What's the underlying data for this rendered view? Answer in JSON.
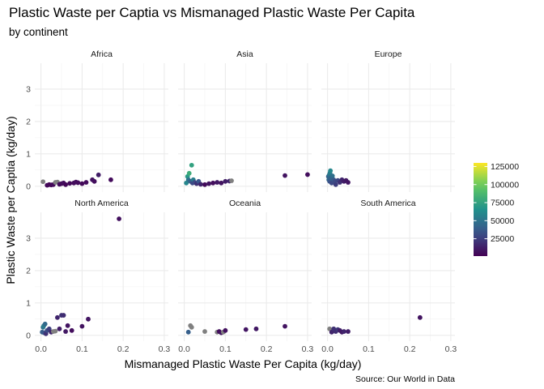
{
  "chart_data": {
    "type": "scatter",
    "title": "Plastic Waste per Captia vs Mismanaged Plastic Waste Per Capita",
    "subtitle": "by continent",
    "xlabel": "Mismanaged Plastic Waste Per Capita (kg/day)",
    "ylabel": "Plastic Waste per Captia (kg/day)",
    "caption": "Source: Our World in Data",
    "xlim": [
      -0.015,
      0.31
    ],
    "ylim": [
      -0.18,
      3.8
    ],
    "x_ticks": [
      0.0,
      0.1,
      0.2,
      0.3
    ],
    "x_tick_labels": [
      "0.0",
      "0.1",
      "0.2",
      "0.3"
    ],
    "y_ticks": [
      0,
      1,
      2,
      3
    ],
    "y_tick_labels": [
      "0",
      "1",
      "2",
      "3"
    ],
    "grid": true,
    "legend": {
      "placement": "right",
      "type": "colorbar",
      "ticks": [
        25000,
        50000,
        75000,
        100000,
        125000
      ],
      "tick_labels": [
        "25000",
        "50000",
        "75000",
        "100000",
        "125000"
      ],
      "range": [
        1000,
        130000
      ],
      "colors": [
        "#440154",
        "#3b528b",
        "#21918c",
        "#5ec962",
        "#fde725"
      ],
      "na_color": "#808080"
    },
    "panels": [
      {
        "name": "Africa",
        "points": [
          {
            "x": 0.005,
            "y": 0.14,
            "c": null
          },
          {
            "x": 0.015,
            "y": 0.03,
            "c": 4000
          },
          {
            "x": 0.02,
            "y": 0.05,
            "c": 3000
          },
          {
            "x": 0.025,
            "y": 0.04,
            "c": 3000
          },
          {
            "x": 0.03,
            "y": 0.05,
            "c": 4000
          },
          {
            "x": 0.035,
            "y": 0.12,
            "c": null
          },
          {
            "x": 0.04,
            "y": 0.13,
            "c": null
          },
          {
            "x": 0.045,
            "y": 0.06,
            "c": 5000
          },
          {
            "x": 0.05,
            "y": 0.08,
            "c": 4000
          },
          {
            "x": 0.055,
            "y": 0.1,
            "c": 6000
          },
          {
            "x": 0.06,
            "y": 0.05,
            "c": 3000
          },
          {
            "x": 0.07,
            "y": 0.09,
            "c": 4000
          },
          {
            "x": 0.08,
            "y": 0.1,
            "c": 5000
          },
          {
            "x": 0.085,
            "y": 0.13,
            "c": 6000
          },
          {
            "x": 0.09,
            "y": 0.11,
            "c": 5000
          },
          {
            "x": 0.1,
            "y": 0.08,
            "c": 4000
          },
          {
            "x": 0.11,
            "y": 0.12,
            "c": 5000
          },
          {
            "x": 0.125,
            "y": 0.2,
            "c": 8000
          },
          {
            "x": 0.13,
            "y": 0.15,
            "c": 6000
          },
          {
            "x": 0.14,
            "y": 0.35,
            "c": 12000
          },
          {
            "x": 0.17,
            "y": 0.2,
            "c": 5000
          }
        ]
      },
      {
        "name": "Asia",
        "points": [
          {
            "x": 0.005,
            "y": 0.1,
            "c": 60000
          },
          {
            "x": 0.008,
            "y": 0.3,
            "c": 70000
          },
          {
            "x": 0.01,
            "y": 0.2,
            "c": 50000
          },
          {
            "x": 0.012,
            "y": 0.4,
            "c": 80000
          },
          {
            "x": 0.015,
            "y": 0.15,
            "c": 40000
          },
          {
            "x": 0.018,
            "y": 0.65,
            "c": 75000
          },
          {
            "x": 0.02,
            "y": 0.1,
            "c": 30000
          },
          {
            "x": 0.022,
            "y": 0.2,
            "c": 55000
          },
          {
            "x": 0.025,
            "y": 0.12,
            "c": 30000
          },
          {
            "x": 0.03,
            "y": 0.08,
            "c": 20000
          },
          {
            "x": 0.035,
            "y": 0.15,
            "c": 35000
          },
          {
            "x": 0.04,
            "y": 0.06,
            "c": 15000
          },
          {
            "x": 0.05,
            "y": 0.05,
            "c": 5000
          },
          {
            "x": 0.06,
            "y": 0.08,
            "c": 8000
          },
          {
            "x": 0.07,
            "y": 0.1,
            "c": 6000
          },
          {
            "x": 0.08,
            "y": 0.12,
            "c": 10000
          },
          {
            "x": 0.09,
            "y": 0.1,
            "c": 8000
          },
          {
            "x": 0.1,
            "y": 0.15,
            "c": 12000
          },
          {
            "x": 0.11,
            "y": 0.16,
            "c": 15000
          },
          {
            "x": 0.115,
            "y": 0.17,
            "c": null
          },
          {
            "x": 0.245,
            "y": 0.33,
            "c": 8000
          },
          {
            "x": 0.3,
            "y": 0.36,
            "c": 6000
          }
        ]
      },
      {
        "name": "Europe",
        "points": [
          {
            "x": 0.002,
            "y": 0.3,
            "c": 40000
          },
          {
            "x": 0.003,
            "y": 0.2,
            "c": 45000
          },
          {
            "x": 0.004,
            "y": 0.35,
            "c": 50000
          },
          {
            "x": 0.005,
            "y": 0.15,
            "c": 35000
          },
          {
            "x": 0.006,
            "y": 0.42,
            "c": 55000
          },
          {
            "x": 0.007,
            "y": 0.48,
            "c": 60000
          },
          {
            "x": 0.008,
            "y": 0.25,
            "c": 42000
          },
          {
            "x": 0.01,
            "y": 0.1,
            "c": 30000
          },
          {
            "x": 0.012,
            "y": 0.32,
            "c": 48000
          },
          {
            "x": 0.015,
            "y": 0.2,
            "c": 38000
          },
          {
            "x": 0.018,
            "y": 0.15,
            "c": 30000
          },
          {
            "x": 0.02,
            "y": 0.05,
            "c": 25000
          },
          {
            "x": 0.025,
            "y": 0.18,
            "c": 28000
          },
          {
            "x": 0.03,
            "y": 0.12,
            "c": 20000
          },
          {
            "x": 0.035,
            "y": 0.2,
            "c": 15000
          },
          {
            "x": 0.04,
            "y": 0.15,
            "c": 12000
          },
          {
            "x": 0.045,
            "y": 0.18,
            "c": 10000
          },
          {
            "x": 0.05,
            "y": 0.12,
            "c": 9000
          }
        ]
      },
      {
        "name": "North America",
        "points": [
          {
            "x": 0.003,
            "y": 0.1,
            "c": 40000
          },
          {
            "x": 0.005,
            "y": 0.25,
            "c": 50000
          },
          {
            "x": 0.007,
            "y": 0.3,
            "c": 55000
          },
          {
            "x": 0.008,
            "y": 0.08,
            "c": 35000
          },
          {
            "x": 0.01,
            "y": 0.35,
            "c": 45000
          },
          {
            "x": 0.012,
            "y": 0.05,
            "c": 20000
          },
          {
            "x": 0.015,
            "y": 0.15,
            "c": 30000
          },
          {
            "x": 0.02,
            "y": 0.2,
            "c": 25000
          },
          {
            "x": 0.025,
            "y": 0.1,
            "c": 15000
          },
          {
            "x": 0.03,
            "y": 0.12,
            "c": null
          },
          {
            "x": 0.035,
            "y": 0.13,
            "c": null
          },
          {
            "x": 0.04,
            "y": 0.55,
            "c": 15000
          },
          {
            "x": 0.045,
            "y": 0.2,
            "c": 12000
          },
          {
            "x": 0.05,
            "y": 0.62,
            "c": 20000
          },
          {
            "x": 0.055,
            "y": 0.62,
            "c": 18000
          },
          {
            "x": 0.06,
            "y": 0.12,
            "c": 10000
          },
          {
            "x": 0.065,
            "y": 0.3,
            "c": 8000
          },
          {
            "x": 0.075,
            "y": 0.15,
            "c": 6000
          },
          {
            "x": 0.1,
            "y": 0.28,
            "c": 8000
          },
          {
            "x": 0.115,
            "y": 0.5,
            "c": 9000
          },
          {
            "x": 0.19,
            "y": 3.6,
            "c": 7000
          }
        ]
      },
      {
        "name": "Oceania",
        "points": [
          {
            "x": 0.01,
            "y": 0.1,
            "c": 40000
          },
          {
            "x": 0.015,
            "y": 0.3,
            "c": null
          },
          {
            "x": 0.018,
            "y": 0.25,
            "c": null
          },
          {
            "x": 0.05,
            "y": 0.12,
            "c": null
          },
          {
            "x": 0.08,
            "y": 0.1,
            "c": null
          },
          {
            "x": 0.085,
            "y": 0.12,
            "c": 6000
          },
          {
            "x": 0.09,
            "y": 0.08,
            "c": 8000
          },
          {
            "x": 0.095,
            "y": 0.1,
            "c": null
          },
          {
            "x": 0.1,
            "y": 0.15,
            "c": 7000
          },
          {
            "x": 0.15,
            "y": 0.18,
            "c": 9000
          },
          {
            "x": 0.175,
            "y": 0.2,
            "c": 10000
          },
          {
            "x": 0.245,
            "y": 0.28,
            "c": 8000
          }
        ]
      },
      {
        "name": "South America",
        "points": [
          {
            "x": 0.005,
            "y": 0.2,
            "c": null
          },
          {
            "x": 0.01,
            "y": 0.1,
            "c": 15000
          },
          {
            "x": 0.015,
            "y": 0.2,
            "c": 20000
          },
          {
            "x": 0.02,
            "y": 0.12,
            "c": 18000
          },
          {
            "x": 0.025,
            "y": 0.18,
            "c": 22000
          },
          {
            "x": 0.03,
            "y": 0.15,
            "c": 12000
          },
          {
            "x": 0.035,
            "y": 0.1,
            "c": 10000
          },
          {
            "x": 0.04,
            "y": 0.12,
            "c": 15000
          },
          {
            "x": 0.05,
            "y": 0.12,
            "c": 12000
          },
          {
            "x": 0.225,
            "y": 0.55,
            "c": 8000
          }
        ]
      }
    ]
  }
}
